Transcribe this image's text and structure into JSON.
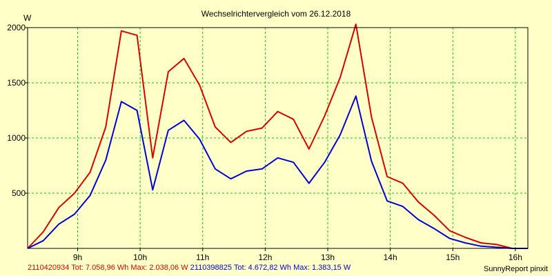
{
  "chart_data": {
    "type": "line",
    "title": "Wechselrichtervergleich vom 26.12.2018",
    "ylabel": "W",
    "xlabel": "",
    "ylim": [
      0,
      2000
    ],
    "xlim": [
      8.2,
      16.2
    ],
    "yticks": [
      500,
      1000,
      1500,
      2000
    ],
    "xticks": [
      {
        "value": 9,
        "label": "9h"
      },
      {
        "value": 10,
        "label": "10h"
      },
      {
        "value": 11,
        "label": "11h"
      },
      {
        "value": 12,
        "label": "12h"
      },
      {
        "value": 13,
        "label": "13h"
      },
      {
        "value": 14,
        "label": "14h"
      },
      {
        "value": 15,
        "label": "15h"
      },
      {
        "value": 16,
        "label": "16h"
      }
    ],
    "grid": true,
    "x": [
      8.2,
      8.45,
      8.7,
      8.95,
      9.2,
      9.45,
      9.7,
      9.95,
      10.2,
      10.45,
      10.7,
      10.95,
      11.2,
      11.45,
      11.7,
      11.95,
      12.2,
      12.45,
      12.7,
      12.95,
      13.2,
      13.45,
      13.7,
      13.95,
      14.2,
      14.45,
      14.7,
      14.95,
      15.2,
      15.45,
      15.7,
      15.95,
      16.2
    ],
    "series": [
      {
        "name": "2110420934",
        "color": "#dd0000",
        "values": [
          0,
          150,
          370,
          500,
          690,
          1100,
          1970,
          1930,
          820,
          1600,
          1720,
          1480,
          1100,
          960,
          1060,
          1090,
          1240,
          1170,
          900,
          1200,
          1550,
          2030,
          1190,
          650,
          590,
          420,
          300,
          160,
          100,
          50,
          35,
          0,
          0
        ]
      },
      {
        "name": "2110398825",
        "color": "#0000dd",
        "values": [
          0,
          70,
          220,
          310,
          480,
          800,
          1330,
          1250,
          530,
          1070,
          1160,
          990,
          720,
          630,
          700,
          720,
          820,
          780,
          590,
          780,
          1030,
          1380,
          790,
          430,
          380,
          260,
          180,
          90,
          50,
          20,
          10,
          0,
          0
        ]
      }
    ]
  },
  "footer": {
    "series1": "2110420934 Tot: 7.058,96 Wh Max: 2.038,06 W",
    "series2": "2110398825 Tot: 4.672,82 Wh Max: 1.383,15 W",
    "credit": "SunnyReport pinxit"
  }
}
